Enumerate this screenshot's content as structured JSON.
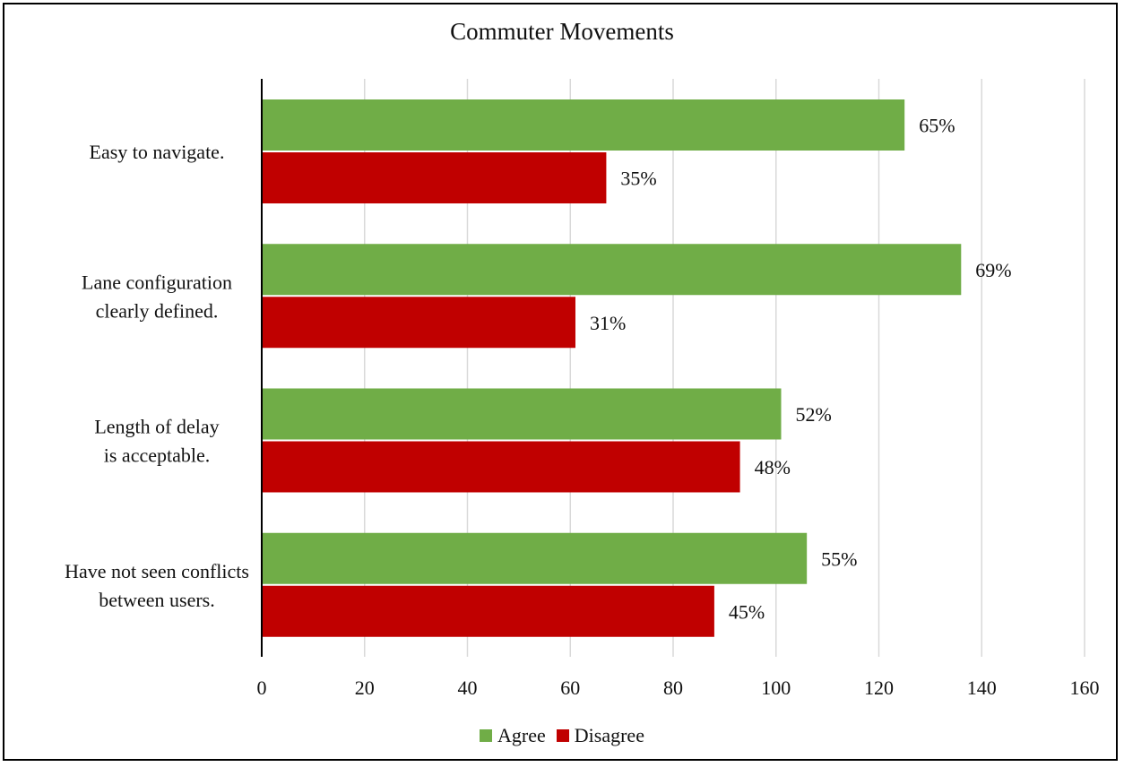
{
  "chart_data": {
    "type": "bar",
    "orientation": "horizontal",
    "title": "Commuter Movements",
    "categories": [
      [
        "Easy to navigate."
      ],
      [
        "Lane configuration",
        "clearly defined."
      ],
      [
        "Length of delay",
        "is acceptable."
      ],
      [
        "Have not seen conflicts",
        "between users."
      ]
    ],
    "series": [
      {
        "name": "Agree",
        "color": "#70ad47",
        "values": [
          125,
          136,
          101,
          106
        ],
        "labels": [
          "65%",
          "69%",
          "52%",
          "55%"
        ]
      },
      {
        "name": "Disagree",
        "color": "#c00000",
        "values": [
          67,
          61,
          93,
          88
        ],
        "labels": [
          "35%",
          "31%",
          "48%",
          "45%"
        ]
      }
    ],
    "xlim": [
      0,
      160
    ],
    "xticks": [
      0,
      20,
      40,
      60,
      80,
      100,
      120,
      140,
      160
    ],
    "grid": true,
    "legend_position": "bottom"
  }
}
